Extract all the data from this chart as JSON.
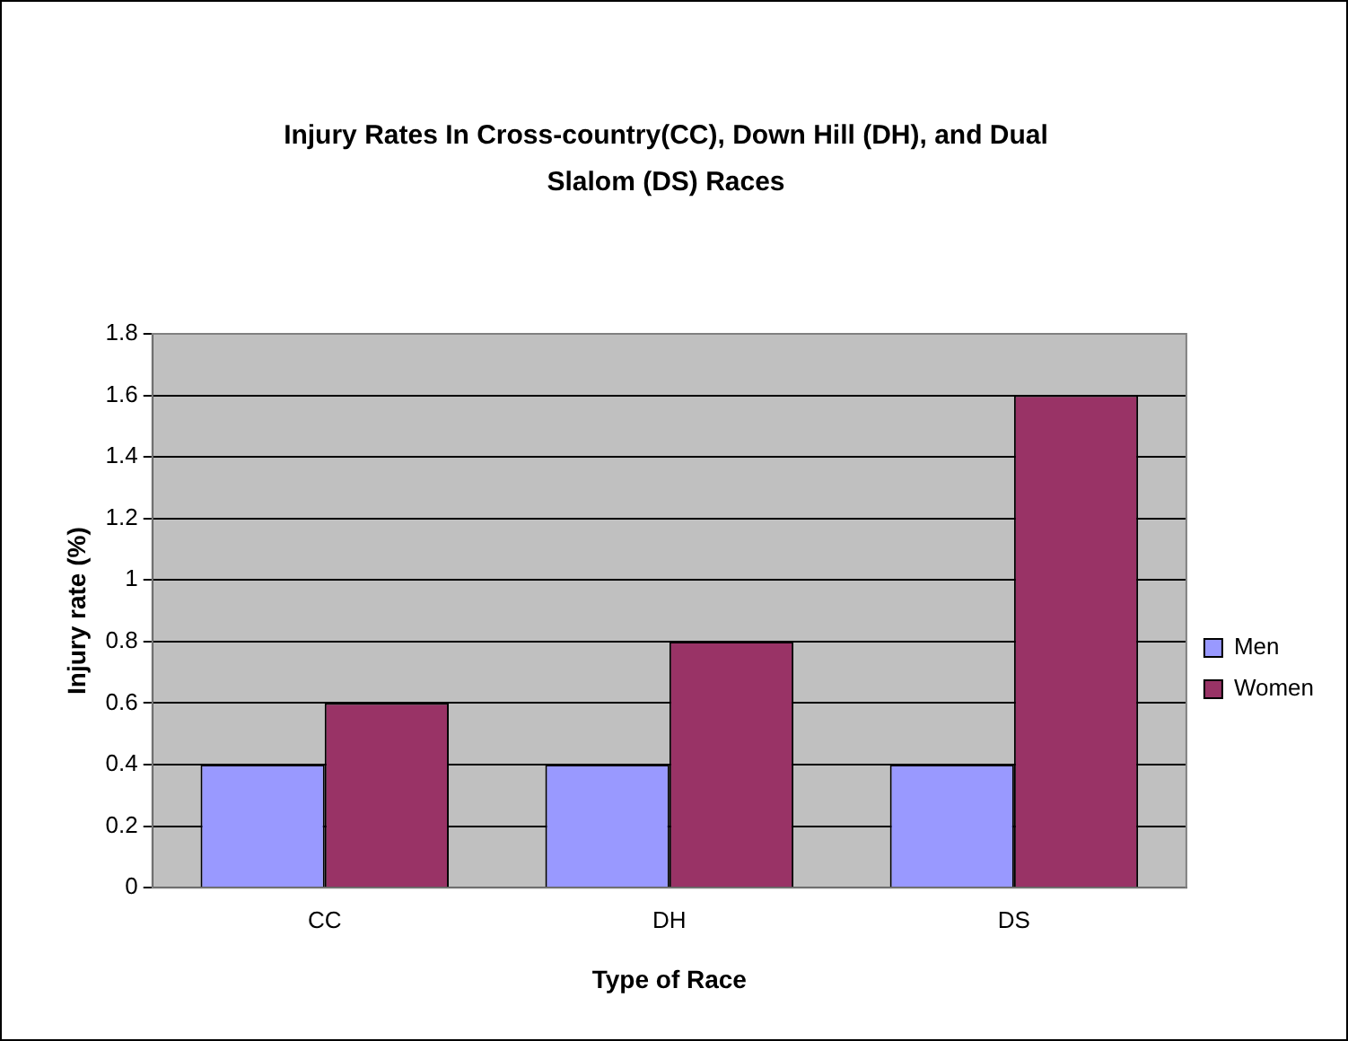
{
  "chart_data": {
    "type": "bar",
    "title": "Injury Rates In Cross-country(CC), Down Hill (DH), and Dual Slalom (DS) Races",
    "xlabel": "Type of Race",
    "ylabel": "Injury rate (%)",
    "categories": [
      "CC",
      "DH",
      "DS"
    ],
    "series": [
      {
        "name": "Men",
        "color": "#9999ff",
        "values": [
          0.4,
          0.4,
          0.4
        ]
      },
      {
        "name": "Women",
        "color": "#993366",
        "values": [
          0.6,
          0.8,
          1.6
        ]
      }
    ],
    "ylim": [
      0,
      1.8
    ],
    "yticks": [
      0,
      0.2,
      0.4,
      0.6,
      0.8,
      1,
      1.2,
      1.4,
      1.6,
      1.8
    ],
    "grid": "y",
    "legend": "right"
  }
}
